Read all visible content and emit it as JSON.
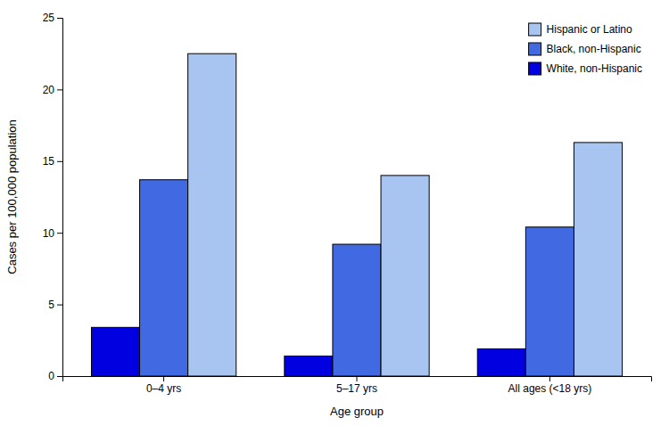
{
  "chart_data": {
    "type": "bar",
    "xlabel": "Age group",
    "ylabel": "Cases per 100,000 population",
    "categories": [
      "0–4 yrs",
      "5–17 yrs",
      "All ages (<18 yrs)"
    ],
    "series": [
      {
        "name": "White, non-Hispanic",
        "color": "#0000e0",
        "values": [
          3.4,
          1.4,
          1.9
        ]
      },
      {
        "name": "Black, non-Hispanic",
        "color": "#4169e1",
        "values": [
          13.7,
          9.2,
          10.4
        ]
      },
      {
        "name": "Hispanic or Latino",
        "color": "#a8c4f0",
        "values": [
          22.5,
          14.0,
          16.3
        ]
      }
    ],
    "ylim": [
      0,
      25
    ],
    "yticks": [
      0,
      5,
      10,
      15,
      20,
      25
    ],
    "grid": false,
    "legend": "upper-right"
  }
}
